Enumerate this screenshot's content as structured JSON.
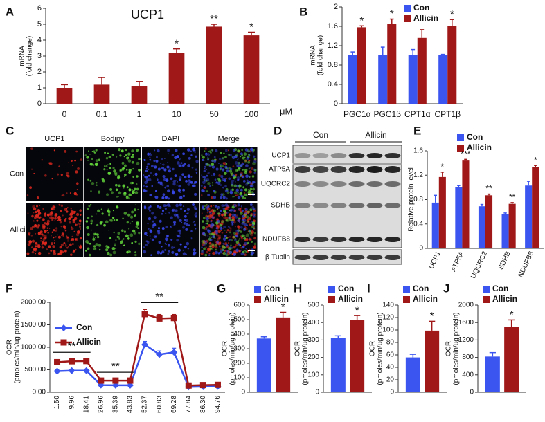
{
  "chart_data": [
    {
      "type": "bar",
      "panel_label": "A",
      "title": "UCP1",
      "y_label": [
        "mRNA",
        "(fold change)"
      ],
      "x_label": "μM",
      "categories": [
        "0",
        "0.1",
        "1",
        "10",
        "50",
        "100"
      ],
      "series": [
        {
          "color": "#a01818",
          "values": [
            1.0,
            1.2,
            1.1,
            3.2,
            4.85,
            4.3
          ],
          "errors": [
            0.2,
            0.45,
            0.3,
            0.25,
            0.15,
            0.2
          ],
          "significance": [
            null,
            null,
            null,
            "*",
            "**",
            "*"
          ]
        }
      ],
      "ylim": [
        0,
        6
      ],
      "yticks": [
        0,
        1,
        2,
        3,
        4,
        5,
        6
      ]
    },
    {
      "type": "bar",
      "panel_label": "B",
      "y_label": [
        "mRNA",
        "(fold change)"
      ],
      "categories": [
        "PGC1α",
        "PGC1β",
        "CPT1α",
        "CPT1β"
      ],
      "series": [
        {
          "name": "Con",
          "color": "#3b55f0",
          "values": [
            1.0,
            1.0,
            1.0,
            1.0
          ],
          "errors": [
            0.07,
            0.17,
            0.12,
            0.02
          ]
        },
        {
          "name": "Allicin",
          "color": "#a01818",
          "values": [
            1.58,
            1.65,
            1.36,
            1.61
          ],
          "errors": [
            0.03,
            0.1,
            0.17,
            0.13
          ],
          "significance": [
            "*",
            "*",
            null,
            "*"
          ]
        }
      ],
      "ylim": [
        0,
        2
      ],
      "yticks": [
        0,
        0.4,
        0.8,
        1.2,
        1.6,
        2
      ]
    },
    {
      "type": "bar",
      "panel_label": "E",
      "y_label": [
        "Relative protein level"
      ],
      "categories": [
        "UCP1",
        "ATP5A",
        "UQCRC2",
        "SDHB",
        "NDUFB8"
      ],
      "series": [
        {
          "name": "Con",
          "color": "#3b55f0",
          "values": [
            0.75,
            1.01,
            0.69,
            0.56,
            1.03
          ],
          "errors": [
            0.12,
            0.02,
            0.03,
            0.02,
            0.07
          ]
        },
        {
          "name": "Allicin",
          "color": "#a01818",
          "values": [
            1.17,
            1.44,
            0.87,
            0.73,
            1.33
          ],
          "errors": [
            0.08,
            0.02,
            0.02,
            0.02,
            0.03
          ],
          "significance": [
            "*",
            "***",
            "**",
            "**",
            "*"
          ]
        }
      ],
      "ylim": [
        0,
        1.6
      ],
      "yticks": [
        0,
        0.4,
        0.8,
        1.2,
        1.6
      ]
    },
    {
      "type": "line",
      "panel_label": "F",
      "y_label": [
        "OCR",
        "(pmoles/min/ug protein)"
      ],
      "categories": [
        "1.50",
        "9.96",
        "18.41",
        "26.96",
        "35.39",
        "43.83",
        "52.37",
        "60.83",
        "69.28",
        "77.84",
        "86.30",
        "94.76"
      ],
      "series": [
        {
          "name": "Con",
          "color": "#3b55f0",
          "marker": "diamond",
          "values": [
            470,
            480,
            480,
            160,
            155,
            155,
            1060,
            840,
            890,
            120,
            125,
            130
          ],
          "errors": [
            20,
            20,
            20,
            15,
            15,
            15,
            70,
            80,
            90,
            10,
            10,
            10
          ]
        },
        {
          "name": "Allicin",
          "color": "#a01818",
          "marker": "square",
          "values": [
            670,
            690,
            695,
            260,
            260,
            260,
            1740,
            1640,
            1650,
            150,
            160,
            165
          ],
          "errors": [
            40,
            40,
            40,
            30,
            30,
            30,
            100,
            90,
            80,
            15,
            15,
            15
          ]
        }
      ],
      "brackets": [
        "**",
        "**",
        "**"
      ],
      "ylim": [
        0,
        2000
      ],
      "yticks": [
        {
          "value": 0,
          "label": "0.00"
        },
        {
          "value": 500,
          "label": "500.00"
        },
        {
          "value": 1000,
          "label": "1000.00"
        },
        {
          "value": 1500,
          "label": "1500.00"
        },
        {
          "value": 2000,
          "label": "2000.00"
        }
      ]
    },
    {
      "type": "bar",
      "panel_label": "G",
      "y_label": [
        "OCR",
        "(pmoles/min/ug protein)"
      ],
      "categories": [
        null
      ],
      "series": [
        {
          "name": "Con",
          "color": "#3b55f0",
          "values": [
            370
          ],
          "errors": [
            12
          ]
        },
        {
          "name": "Allicin",
          "color": "#a01818",
          "values": [
            515
          ],
          "errors": [
            35
          ],
          "significance": [
            "*"
          ]
        }
      ],
      "ylim": [
        0,
        600
      ],
      "yticks": [
        0,
        100,
        200,
        300,
        400,
        500,
        600
      ]
    },
    {
      "type": "bar",
      "panel_label": "H",
      "y_label": [
        "OCR",
        "(pmoles/min/ug protein)"
      ],
      "categories": [
        null
      ],
      "series": [
        {
          "name": "Con",
          "color": "#3b55f0",
          "values": [
            312
          ],
          "errors": [
            12
          ]
        },
        {
          "name": "Allicin",
          "color": "#a01818",
          "values": [
            415
          ],
          "errors": [
            25
          ],
          "significance": [
            "*"
          ]
        }
      ],
      "ylim": [
        0,
        500
      ],
      "yticks": [
        0,
        100,
        200,
        300,
        400,
        500
      ]
    },
    {
      "type": "bar",
      "panel_label": "I",
      "y_label": [
        "OCR",
        "(pmoles/min/ug protein)"
      ],
      "categories": [
        null
      ],
      "series": [
        {
          "name": "Con",
          "color": "#3b55f0",
          "values": [
            56
          ],
          "errors": [
            5
          ]
        },
        {
          "name": "Allicin",
          "color": "#a01818",
          "values": [
            99
          ],
          "errors": [
            15
          ],
          "significance": [
            "*"
          ]
        }
      ],
      "ylim": [
        0,
        140
      ],
      "yticks": [
        0,
        20,
        40,
        60,
        80,
        100,
        120,
        140
      ]
    },
    {
      "type": "bar",
      "panel_label": "J",
      "y_label": [
        "OCR",
        "(pmoles/min/ug protein)"
      ],
      "categories": [
        null
      ],
      "series": [
        {
          "name": "Con",
          "color": "#3b55f0",
          "values": [
            820
          ],
          "errors": [
            90
          ]
        },
        {
          "name": "Allicin",
          "color": "#a01818",
          "values": [
            1500
          ],
          "errors": [
            160
          ],
          "significance": [
            "*"
          ]
        }
      ],
      "ylim": [
        0,
        2000
      ],
      "yticks": [
        0,
        400,
        800,
        1200,
        1600,
        2000
      ]
    }
  ],
  "panel_c": {
    "label": "C",
    "columns": [
      "UCP1",
      "Bodipy",
      "DAPI",
      "Merge"
    ],
    "rows": [
      "Con",
      "Allicin"
    ]
  },
  "panel_d": {
    "label": "D",
    "groups": [
      "Con",
      "Allicin"
    ],
    "bands": [
      "UCP1",
      "ATP5A",
      "UQCRC2",
      "SDHB",
      "NDUFB8",
      "β-Tublin"
    ]
  }
}
